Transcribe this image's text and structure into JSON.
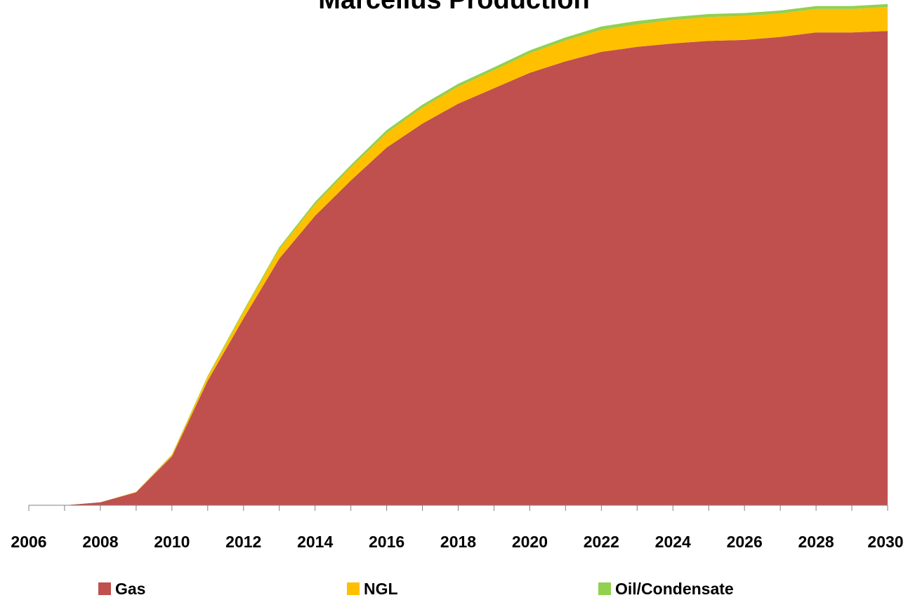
{
  "chart_data": {
    "type": "area",
    "stacked": true,
    "title": "Marcellus Production",
    "xlabel": "",
    "ylabel": "",
    "x": [
      2006,
      2007,
      2008,
      2009,
      2010,
      2011,
      2012,
      2013,
      2014,
      2015,
      2016,
      2017,
      2018,
      2019,
      2020,
      2021,
      2022,
      2023,
      2024,
      2025,
      2026,
      2027,
      2028,
      2029,
      2030
    ],
    "x_tick_labels": [
      "2006",
      "2008",
      "2010",
      "2012",
      "2014",
      "2016",
      "2018",
      "2020",
      "2022",
      "2024",
      "2026",
      "2028",
      "2030"
    ],
    "ylim": [
      0,
      100
    ],
    "grid": false,
    "legend_position": "bottom",
    "series": [
      {
        "name": "Gas",
        "color": "#C0504D",
        "values": [
          0,
          0,
          0.6,
          2.6,
          9.8,
          25,
          37.5,
          49.5,
          58.1,
          65.2,
          71.8,
          76.6,
          80.6,
          83.7,
          86.8,
          89.1,
          91,
          92,
          92.7,
          93.2,
          93.4,
          94,
          94.9,
          94.9,
          95.2
        ]
      },
      {
        "name": "NGL",
        "color": "#FFC000",
        "values": [
          0,
          0,
          0,
          0.1,
          0.3,
          0.8,
          1.3,
          1.9,
          2.3,
          2.6,
          2.9,
          3.2,
          3.4,
          3.6,
          3.9,
          4.2,
          4.4,
          4.5,
          4.7,
          4.8,
          4.8,
          4.7,
          4.7,
          4.7,
          4.8
        ]
      },
      {
        "name": "Oil/Condensate",
        "color": "#92D050",
        "values": [
          0,
          0,
          0,
          0,
          0.1,
          0.2,
          0.3,
          0.4,
          0.5,
          0.5,
          0.6,
          0.6,
          0.6,
          0.6,
          0.6,
          0.6,
          0.7,
          0.7,
          0.6,
          0.6,
          0.6,
          0.6,
          0.6,
          0.6,
          0.6
        ]
      }
    ]
  }
}
